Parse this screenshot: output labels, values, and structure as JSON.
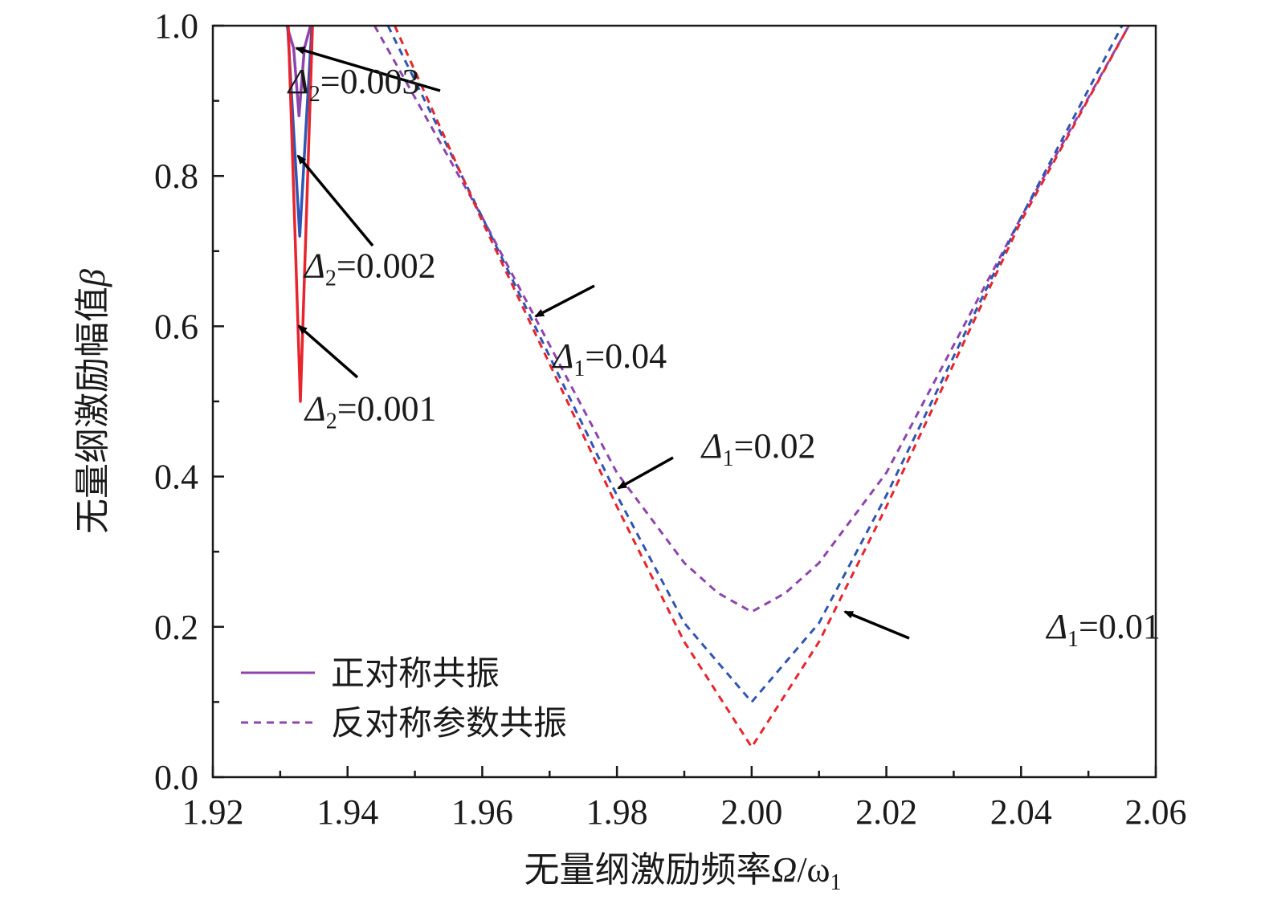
{
  "chart_data": {
    "type": "line",
    "xlabel": "无量纲激励频率Ω/ω1",
    "xlabel_parts": {
      "text": "无量纲激励频率",
      "var": "Ω",
      "slash": "/",
      "omega": "ω",
      "sub": "1"
    },
    "ylabel": "无量纲激励幅值β",
    "ylabel_parts": {
      "text": "无量纲激励幅值",
      "var": "β"
    },
    "xlim": [
      1.92,
      2.06
    ],
    "ylim": [
      0.0,
      1.0
    ],
    "x_ticks": [
      "1.92",
      "1.94",
      "1.96",
      "1.98",
      "2.00",
      "2.02",
      "2.04",
      "2.06"
    ],
    "y_ticks": [
      "0.0",
      "0.2",
      "0.4",
      "0.6",
      "0.8",
      "1.0"
    ],
    "grid": false,
    "legend_position": "bottom-left",
    "legend": [
      {
        "label": "正对称共振",
        "style": "solid",
        "color": "#8e44ad"
      },
      {
        "label": "反对称参数共振",
        "style": "dashed",
        "color": "#8e44ad"
      }
    ],
    "series": [
      {
        "label": "Δ2=0.003",
        "style": "solid",
        "color": "#8e44ad",
        "x": [
          1.931,
          1.932,
          1.9328,
          1.9336,
          1.9345
        ],
        "y": [
          1.0,
          0.97,
          0.88,
          0.97,
          1.0
        ]
      },
      {
        "label": "Δ2=0.002",
        "style": "solid",
        "color": "#2f55b5",
        "x": [
          1.9311,
          1.932,
          1.9329,
          1.9338,
          1.9347
        ],
        "y": [
          1.0,
          0.86,
          0.72,
          0.86,
          1.0
        ]
      },
      {
        "label": "Δ2=0.001",
        "style": "solid",
        "color": "#e8242c",
        "x": [
          1.9312,
          1.9321,
          1.933,
          1.9339,
          1.9348
        ],
        "y": [
          1.0,
          0.75,
          0.5,
          0.75,
          1.0
        ]
      },
      {
        "label": "Δ1=0.04",
        "style": "dashed",
        "color": "#8e44ad",
        "x": [
          1.944,
          1.96,
          1.98,
          1.99,
          1.995,
          2.0,
          2.005,
          2.01,
          2.02,
          2.04,
          2.056
        ],
        "y": [
          1.0,
          0.745,
          0.405,
          0.285,
          0.245,
          0.22,
          0.245,
          0.285,
          0.405,
          0.745,
          1.0
        ]
      },
      {
        "label": "Δ1=0.02",
        "style": "dashed",
        "color": "#2f55b5",
        "x": [
          1.946,
          1.96,
          1.98,
          1.99,
          2.0,
          2.01,
          2.02,
          2.04,
          2.055
        ],
        "y": [
          1.0,
          0.745,
          0.375,
          0.205,
          0.1,
          0.205,
          0.375,
          0.745,
          1.0
        ]
      },
      {
        "label": "Δ1=0.01",
        "style": "dashed",
        "color": "#e8242c",
        "x": [
          1.947,
          1.96,
          1.98,
          1.99,
          2.0,
          2.01,
          2.02,
          2.04,
          2.056
        ],
        "y": [
          1.0,
          0.74,
          0.36,
          0.18,
          0.04,
          0.18,
          0.36,
          0.74,
          1.0
        ]
      }
    ],
    "annotations": [
      {
        "name": "delta2-0003",
        "sym": "Δ",
        "sub": "2",
        "val": "=0.003",
        "tx": 1.9312,
        "ty": 0.91
      },
      {
        "name": "delta2-0002",
        "sym": "Δ",
        "sub": "2",
        "val": "=0.002",
        "tx": 1.9336,
        "ty": 0.665
      },
      {
        "name": "delta2-0001",
        "sym": "Δ",
        "sub": "2",
        "val": "=0.001",
        "tx": 1.9337,
        "ty": 0.475
      },
      {
        "name": "delta1-004",
        "sym": "Δ",
        "sub": "1",
        "val": "=0.04",
        "tx": 1.9705,
        "ty": 0.545
      },
      {
        "name": "delta1-002",
        "sym": "Δ",
        "sub": "1",
        "val": "=0.02",
        "tx": 1.9926,
        "ty": 0.425
      },
      {
        "name": "delta1-001",
        "sym": "Δ",
        "sub": "1",
        "val": "=0.01",
        "tx": 2.0438,
        "ty": 0.185
      }
    ]
  }
}
